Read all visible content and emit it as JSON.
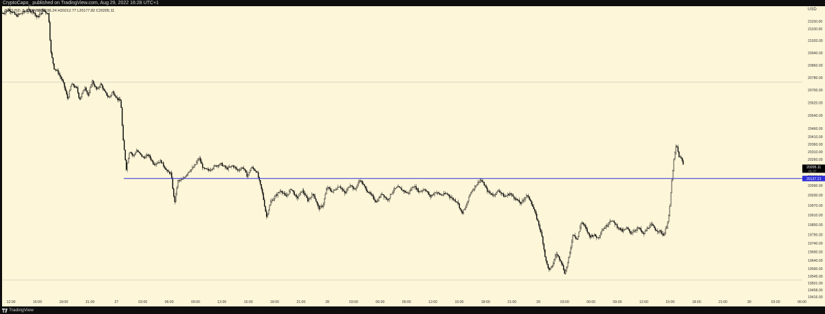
{
  "header": {
    "publish_line": "CryptoCapo_ published on TradingView.com, Aug 29, 2022 16:28 UTC+1",
    "symbol_line": "BTCUSD, 5, COINBASE",
    "ohlc": {
      "o_label": "O",
      "o": "20196.24",
      "h_label": "H",
      "h": "20212.77",
      "l_label": "L",
      "l": "20177.82",
      "c_label": "C",
      "c": "20205.11"
    }
  },
  "footer": {
    "brand": "TradingView"
  },
  "colors": {
    "background": "#fdf6d9",
    "candle": "#000000",
    "support_line": "#2f2fd8",
    "price_tag": "#000000",
    "level_tag": "#2f2fd8"
  },
  "chart_data": {
    "type": "candlestick",
    "currency": "USD",
    "x_ticks": [
      "12:00",
      "15:00",
      "18:00",
      "21:00",
      "27",
      "03:00",
      "06:00",
      "09:00",
      "12:00",
      "15:00",
      "18:00",
      "21:00",
      "28",
      "03:00",
      "06:00",
      "09:00",
      "12:00",
      "15:00",
      "18:00",
      "21:00",
      "29",
      "03:00",
      "06:00",
      "09:00",
      "12:00",
      "15:00",
      "18:00",
      "21:00",
      "30",
      "03:00",
      "06:00"
    ],
    "y_ticks": [
      "21150.00",
      "21100.00",
      "21020.00",
      "20940.00",
      "20860.00",
      "20780.00",
      "20700.00",
      "20620.00",
      "20540.00",
      "20460.00",
      "20410.00",
      "20360.00",
      "20310.00",
      "20260.00",
      "20150.00",
      "20090.00",
      "20030.00",
      "19970.00",
      "19910.00",
      "19850.00",
      "19790.00",
      "19740.00",
      "19690.00",
      "19640.00",
      "19590.00",
      "19545.00",
      "19501.00",
      "19458.00",
      "19416.00"
    ],
    "last_price": "20205.11",
    "last_price_countdown": "01:37",
    "support_level": "20137.21",
    "highlight_level_top": "20750.00",
    "highlight_level_bottom": "19520.00",
    "path": [
      [
        0,
        21195
      ],
      [
        10,
        21215
      ],
      [
        20,
        21180
      ],
      [
        35,
        21210
      ],
      [
        45,
        21205
      ],
      [
        50,
        21170
      ],
      [
        60,
        21210
      ],
      [
        67,
        21190
      ],
      [
        70,
        20950
      ],
      [
        75,
        20840
      ],
      [
        80,
        20820
      ],
      [
        88,
        20750
      ],
      [
        95,
        20640
      ],
      [
        100,
        20740
      ],
      [
        108,
        20710
      ],
      [
        112,
        20640
      ],
      [
        120,
        20720
      ],
      [
        125,
        20660
      ],
      [
        130,
        20760
      ],
      [
        137,
        20700
      ],
      [
        143,
        20740
      ],
      [
        148,
        20690
      ],
      [
        155,
        20650
      ],
      [
        160,
        20690
      ],
      [
        168,
        20640
      ],
      [
        172,
        20630
      ],
      [
        175,
        20400
      ],
      [
        180,
        20200
      ],
      [
        185,
        20320
      ],
      [
        190,
        20280
      ],
      [
        195,
        20320
      ],
      [
        205,
        20270
      ],
      [
        212,
        20290
      ],
      [
        220,
        20230
      ],
      [
        230,
        20250
      ],
      [
        240,
        20180
      ],
      [
        245,
        20170
      ],
      [
        250,
        19980
      ],
      [
        255,
        20120
      ],
      [
        262,
        20130
      ],
      [
        270,
        20180
      ],
      [
        278,
        20210
      ],
      [
        286,
        20270
      ],
      [
        292,
        20200
      ],
      [
        300,
        20190
      ],
      [
        310,
        20220
      ],
      [
        318,
        20230
      ],
      [
        326,
        20200
      ],
      [
        335,
        20220
      ],
      [
        342,
        20190
      ],
      [
        350,
        20210
      ],
      [
        356,
        20150
      ],
      [
        362,
        20210
      ],
      [
        370,
        20180
      ],
      [
        378,
        20040
      ],
      [
        384,
        19900
      ],
      [
        390,
        19990
      ],
      [
        396,
        20020
      ],
      [
        405,
        20060
      ],
      [
        412,
        20020
      ],
      [
        420,
        20070
      ],
      [
        428,
        20010
      ],
      [
        436,
        20060
      ],
      [
        444,
        20000
      ],
      [
        452,
        20040
      ],
      [
        460,
        19950
      ],
      [
        466,
        19970
      ],
      [
        472,
        20080
      ],
      [
        480,
        20050
      ],
      [
        490,
        20090
      ],
      [
        498,
        20040
      ],
      [
        506,
        20100
      ],
      [
        512,
        20060
      ],
      [
        520,
        20130
      ],
      [
        528,
        20070
      ],
      [
        536,
        20030
      ],
      [
        544,
        19990
      ],
      [
        552,
        20040
      ],
      [
        560,
        20000
      ],
      [
        568,
        20060
      ],
      [
        575,
        20080
      ],
      [
        582,
        20060
      ],
      [
        590,
        20040
      ],
      [
        598,
        20090
      ],
      [
        606,
        20050
      ],
      [
        614,
        20070
      ],
      [
        622,
        20020
      ],
      [
        630,
        20050
      ],
      [
        638,
        20030
      ],
      [
        646,
        20040
      ],
      [
        654,
        20010
      ],
      [
        662,
        19990
      ],
      [
        668,
        19920
      ],
      [
        674,
        19960
      ],
      [
        680,
        20040
      ],
      [
        688,
        20090
      ],
      [
        695,
        20130
      ],
      [
        700,
        20100
      ],
      [
        706,
        20050
      ],
      [
        714,
        20030
      ],
      [
        722,
        20060
      ],
      [
        730,
        20020
      ],
      [
        738,
        20040
      ],
      [
        746,
        20010
      ],
      [
        754,
        19980
      ],
      [
        762,
        20030
      ],
      [
        768,
        20000
      ],
      [
        774,
        19930
      ],
      [
        780,
        19850
      ],
      [
        785,
        19770
      ],
      [
        790,
        19640
      ],
      [
        795,
        19580
      ],
      [
        800,
        19610
      ],
      [
        805,
        19680
      ],
      [
        812,
        19640
      ],
      [
        818,
        19560
      ],
      [
        824,
        19660
      ],
      [
        830,
        19800
      ],
      [
        836,
        19760
      ],
      [
        842,
        19870
      ],
      [
        848,
        19830
      ],
      [
        854,
        19780
      ],
      [
        860,
        19790
      ],
      [
        866,
        19770
      ],
      [
        872,
        19820
      ],
      [
        878,
        19840
      ],
      [
        884,
        19880
      ],
      [
        890,
        19860
      ],
      [
        896,
        19830
      ],
      [
        902,
        19810
      ],
      [
        908,
        19830
      ],
      [
        914,
        19800
      ],
      [
        920,
        19820
      ],
      [
        926,
        19830
      ],
      [
        932,
        19790
      ],
      [
        938,
        19830
      ],
      [
        944,
        19850
      ],
      [
        950,
        19820
      ],
      [
        956,
        19810
      ],
      [
        962,
        19790
      ],
      [
        966,
        19840
      ],
      [
        970,
        19930
      ],
      [
        973,
        20100
      ],
      [
        976,
        20240
      ],
      [
        980,
        20360
      ],
      [
        984,
        20280
      ],
      [
        988,
        20260
      ],
      [
        991,
        20210
      ]
    ]
  }
}
